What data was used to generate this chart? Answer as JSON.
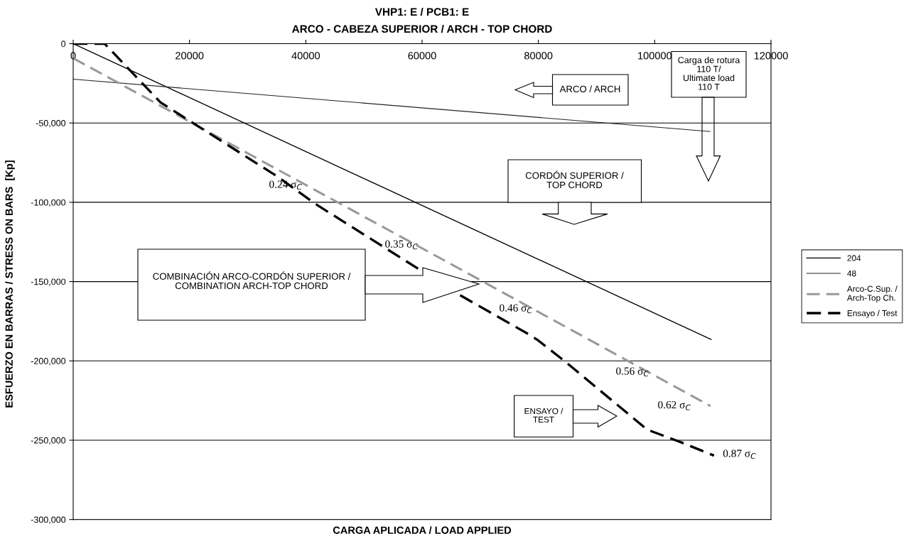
{
  "chart_data": {
    "type": "line",
    "title": "VHP1: E / PCB1: E",
    "subtitle": "ARCO - CABEZA SUPERIOR / ARCH - TOP CHORD",
    "xlabel": "CARGA APLICADA / LOAD APPLIED",
    "ylabel": "ESFUERZO EN BARRAS / STRESS ON BARS  [Kp]",
    "series": [
      {
        "name": "204",
        "color": "#000000",
        "line_style": "solid",
        "x": [
          0,
          109700
        ],
        "values": [
          0,
          -186500
        ]
      },
      {
        "name": "48",
        "color": "#222222",
        "line_style": "solid",
        "x": [
          0,
          109500
        ],
        "values": [
          -22400,
          -55400
        ]
      },
      {
        "name": "Arco-C.Sup. /\nArch-Top Ch.",
        "color": "#999999",
        "line_style": "dashed",
        "x": [
          0,
          60400,
          109600
        ],
        "values": [
          -9200,
          -129800,
          -228500
        ]
      },
      {
        "name": "Ensayo / Test",
        "color": "#000000",
        "line_style": "dashed",
        "x": [
          0,
          5400,
          15000,
          35100,
          41600,
          66500,
          78700,
          80000,
          84400,
          98700,
          104600,
          110200
        ],
        "values": [
          0,
          0,
          -37000,
          -83700,
          -100900,
          -158500,
          -184000,
          -187200,
          -199800,
          -243300,
          -251400,
          -259700
        ]
      }
    ],
    "xlim": [
      0,
      120000
    ],
    "xticks": [
      0,
      20000,
      40000,
      60000,
      80000,
      100000,
      120000
    ],
    "ylim": [
      -300000,
      0
    ],
    "yticks": [
      {
        "value": -300000,
        "label": "-300,000"
      },
      {
        "value": -250000,
        "label": "-250,000"
      },
      {
        "value": -200000,
        "label": "-200,000"
      },
      {
        "value": -150000,
        "label": "-150,000"
      },
      {
        "value": -100000,
        "label": "-100,000"
      },
      {
        "value": -50000,
        "label": "-50,000"
      },
      0
    ],
    "grid": "y",
    "legend": "right",
    "marker": "none",
    "annotations": [
      "ARCO / ARCH",
      "Carga de rotura\n110 T/\nUltimate load\n110 T",
      "CORDÓN SUPERIOR /\nTOP CHORD",
      "COMBINACIÓN ARCO-CORDÓN SUPERIOR /\nCOMBINATION ARCH-TOP CHORD",
      "ENSAYO /\nTEST",
      "0.24 σ$_{C}$",
      "0.35 σ$_{C}$",
      "0.46 σ$_{C}$",
      "0.56 σ$_{C}$",
      "0.62 σ$_{C}$",
      "0.87 σ$_{C}$"
    ]
  }
}
